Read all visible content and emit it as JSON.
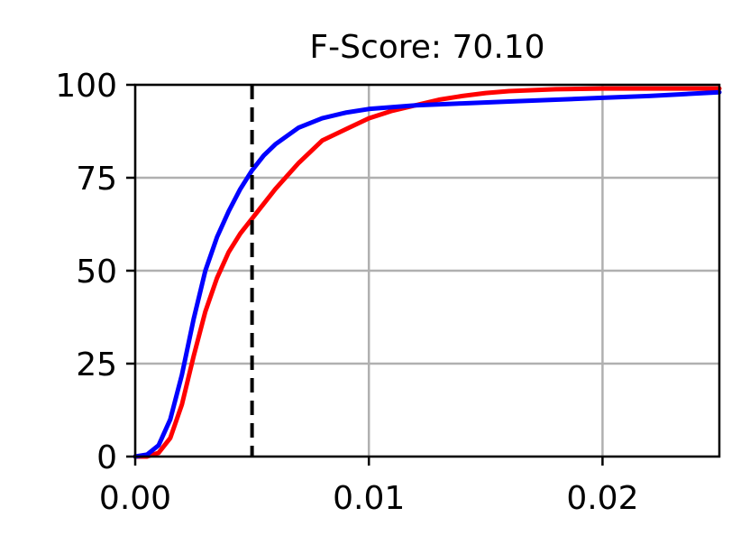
{
  "chart_data": {
    "type": "line",
    "title": "F-Score: 70.10",
    "xlabel": "",
    "ylabel": "",
    "xlim": [
      0,
      0.025
    ],
    "ylim": [
      0,
      100
    ],
    "x_ticks": [
      0,
      0.01,
      0.02
    ],
    "x_tick_labels": [
      "0.00",
      "0.01",
      "0.02"
    ],
    "y_ticks": [
      0,
      25,
      50,
      75,
      100
    ],
    "y_tick_labels": [
      "0",
      "25",
      "50",
      "75",
      "100"
    ],
    "grid": true,
    "threshold_line": {
      "x": 0.005,
      "color": "#000000",
      "style": "dashed"
    },
    "series": [
      {
        "color": "#ff0000",
        "x": [
          0,
          0.0005,
          0.001,
          0.0015,
          0.002,
          0.0025,
          0.003,
          0.0035,
          0.004,
          0.0045,
          0.005,
          0.006,
          0.007,
          0.008,
          0.009,
          0.01,
          0.011,
          0.012,
          0.013,
          0.014,
          0.015,
          0.016,
          0.018,
          0.02,
          0.022,
          0.025
        ],
        "y": [
          0,
          0,
          1,
          5,
          14,
          27,
          39,
          48,
          55,
          60,
          64,
          72,
          79,
          85,
          88,
          91,
          93,
          94.5,
          96,
          97,
          97.8,
          98.3,
          98.8,
          99,
          99,
          99
        ]
      },
      {
        "color": "#0000ff",
        "x": [
          0,
          0.0005,
          0.001,
          0.0015,
          0.002,
          0.0025,
          0.003,
          0.0035,
          0.004,
          0.0045,
          0.005,
          0.0055,
          0.006,
          0.007,
          0.008,
          0.009,
          0.01,
          0.012,
          0.014,
          0.016,
          0.018,
          0.02,
          0.022,
          0.025
        ],
        "y": [
          0,
          0.5,
          3,
          10,
          22,
          37,
          50,
          59,
          66,
          72,
          77,
          81,
          84,
          88.5,
          91,
          92.5,
          93.5,
          94.5,
          95,
          95.5,
          96,
          96.5,
          97,
          98
        ]
      }
    ]
  }
}
